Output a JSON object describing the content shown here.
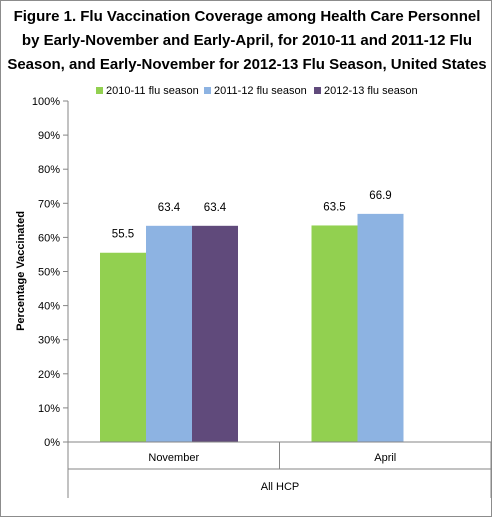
{
  "chart_data": {
    "type": "bar",
    "title_lines": [
      "Figure 1. Flu Vaccination  Coverage among Health Care Personnel",
      "by Early-November  and Early-April,  for 2010-11 and 2011-12 Flu",
      "Season, and Early-November  for 2012-13 Flu Season, United States"
    ],
    "ylabel": "Percentage Vaccinated",
    "xlabel": "All HCP",
    "categories": [
      "November",
      "April"
    ],
    "ylim": [
      0,
      100
    ],
    "yticks": [
      "0%",
      "10%",
      "20%",
      "30%",
      "40%",
      "50%",
      "60%",
      "70%",
      "80%",
      "90%",
      "100%"
    ],
    "grid": false,
    "legend_position": "top",
    "series": [
      {
        "name": "2010-11 flu season",
        "color": "#92d050",
        "values": [
          55.5,
          63.5
        ],
        "labels": [
          "55.5",
          "63.5"
        ]
      },
      {
        "name": "2011-12 flu season",
        "color": "#8db3e2",
        "values": [
          63.4,
          66.9
        ],
        "labels": [
          "63.4",
          "66.9"
        ]
      },
      {
        "name": "2012-13 flu season",
        "color": "#604a7b",
        "values": [
          63.4,
          null
        ],
        "labels": [
          "63.4",
          ""
        ]
      }
    ]
  }
}
